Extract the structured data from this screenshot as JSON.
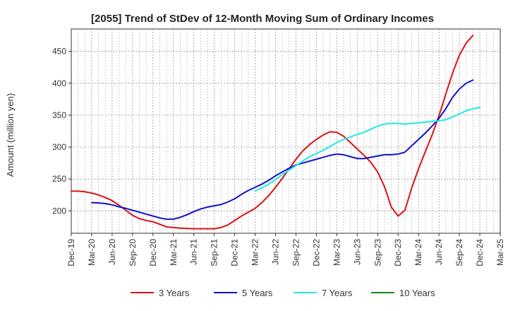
{
  "chart_data": {
    "type": "line",
    "title": "[2055]  Trend of StDev of 12-Month Moving Sum of Ordinary Incomes",
    "xlabel": "",
    "ylabel": "Amount (million yen)",
    "ylim": [
      165,
      485
    ],
    "yticks": [
      200,
      250,
      300,
      350,
      400,
      450
    ],
    "xticks": [
      "Dec-19",
      "Mar-20",
      "Jun-20",
      "Sep-20",
      "Dec-20",
      "Mar-21",
      "Jun-21",
      "Sep-21",
      "Dec-21",
      "Mar-22",
      "Jun-22",
      "Sep-22",
      "Dec-22",
      "Mar-23",
      "Jun-23",
      "Sep-23",
      "Dec-23",
      "Mar-24",
      "Jun-24",
      "Sep-24",
      "Dec-24",
      "Mar-25"
    ],
    "grid": true,
    "legend_position": "bottom",
    "series": [
      {
        "name": "3 Years",
        "color": "#dd1111",
        "start_index": 0,
        "values": [
          231,
          231,
          230,
          228,
          225,
          221,
          216,
          209,
          201,
          193,
          188,
          185,
          183,
          179,
          175,
          174,
          173,
          172.5,
          172,
          172,
          172,
          172,
          174,
          178,
          185,
          192,
          198,
          204,
          213,
          224,
          237,
          251,
          266,
          281,
          294,
          304,
          312,
          319,
          324,
          323,
          317,
          307,
          297,
          287,
          276,
          261,
          238,
          206,
          192,
          201,
          236,
          266,
          293,
          319,
          349,
          383,
          416,
          444,
          463,
          475
        ]
      },
      {
        "name": "5 Years",
        "color": "#1111cc",
        "start_index": 3,
        "values": [
          213,
          212.5,
          211.5,
          209.5,
          206.5,
          204,
          201,
          198,
          195,
          192,
          189,
          187,
          187,
          190,
          194,
          199,
          203,
          206,
          208,
          210,
          214,
          219,
          226,
          232,
          237,
          242,
          248,
          255,
          261,
          267,
          272,
          275,
          278,
          281,
          284,
          287,
          289,
          288,
          285,
          282,
          282,
          284,
          286,
          288,
          288,
          289,
          292,
          302,
          312,
          322,
          333,
          345,
          360,
          378,
          391,
          400,
          405
        ]
      },
      {
        "name": "7 Years",
        "color": "#22e8e8",
        "start_index": 27,
        "values": [
          231,
          236,
          242,
          249,
          257,
          264,
          271,
          278,
          285,
          290,
          295,
          301,
          307,
          312,
          316,
          320,
          323,
          328,
          333,
          336,
          337,
          337,
          336,
          337,
          338,
          339,
          340,
          341,
          343,
          347,
          352,
          357,
          360,
          362
        ]
      },
      {
        "name": "10 Years",
        "color": "#118811",
        "start_index": 0,
        "values": []
      }
    ]
  }
}
